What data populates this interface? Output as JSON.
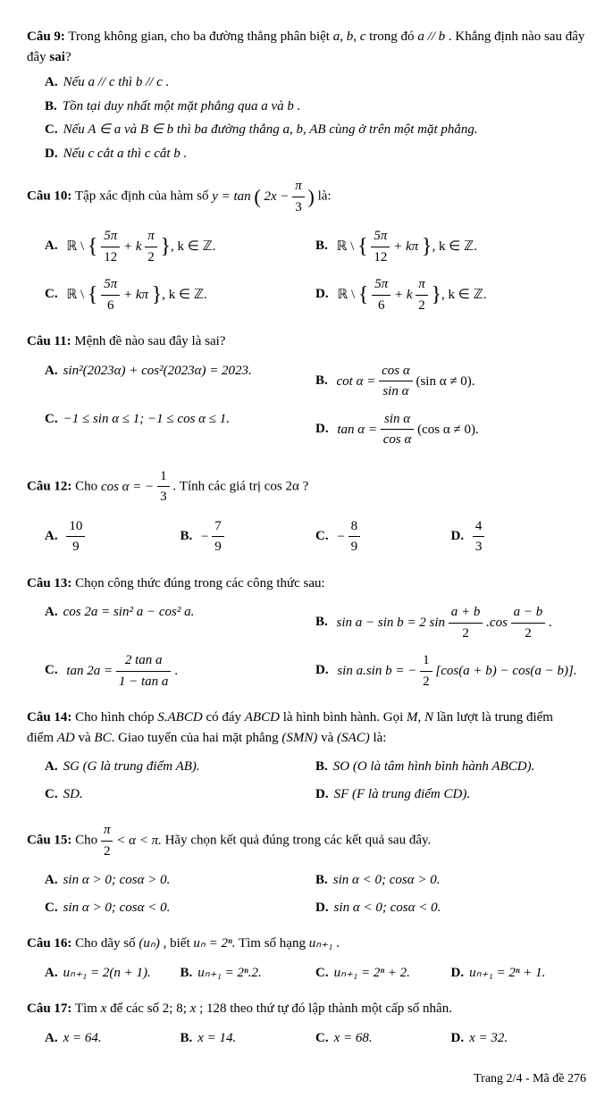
{
  "page": {
    "footer": "Trang 2/4 - Mã đề 276",
    "background_color": "#ffffff",
    "text_color": "#000000",
    "font_family": "Times New Roman",
    "base_fontsize": 15
  },
  "q9": {
    "label": "Câu 9:",
    "text_before": "Trong không gian, cho ba đường thẳng phân biệt ",
    "vars": "a, b, c",
    "text_mid": " trong đó ",
    "cond": "a // b",
    "text_after": ". Khẳng định nào sau đây ",
    "sai": "sai",
    "qmark": "?",
    "A": "Nếu a // c thì b // c .",
    "B": "Tồn tại duy nhất một mặt phẳng qua a và b .",
    "C": "Nếu A ∈ a và B ∈ b thì ba đường thẳng a, b, AB cùng ở trên một mặt phẳng.",
    "D": "Nếu c cắt a thì c cắt b ."
  },
  "q10": {
    "label": "Câu 10:",
    "text": "Tập xác định của hàm số ",
    "eq_lhs": "y = tan",
    "eq_inner_a": "2x −",
    "eq_inner_num": "π",
    "eq_inner_den": "3",
    "text_after": " là:",
    "A_pre": "ℝ \\ ",
    "A_num": "5π",
    "A_den": "12",
    "A_mid": " + k",
    "A_num2": "π",
    "A_den2": "2",
    "A_suf": ", k ∈ ℤ.",
    "B_num": "5π",
    "B_den": "12",
    "B_mid": " + kπ",
    "B_suf": ", k ∈ ℤ.",
    "C_num": "5π",
    "C_den": "6",
    "C_mid": " + kπ",
    "C_suf": ", k ∈ ℤ.",
    "D_num": "5π",
    "D_den": "6",
    "D_mid": " + k",
    "D_num2": "π",
    "D_den2": "2",
    "D_suf": ", k ∈ ℤ."
  },
  "q11": {
    "label": "Câu 11:",
    "text": "Mệnh đề nào sau đây là sai?",
    "A": "sin²(2023α) + cos²(2023α) = 2023.",
    "B_pre": "cot α = ",
    "B_num": "cos α",
    "B_den": "sin α",
    "B_suf": " (sin α ≠ 0).",
    "C": "−1 ≤ sin α ≤ 1;   −1 ≤ cos α ≤ 1.",
    "D_pre": "tan α = ",
    "D_num": "sin α",
    "D_den": "cos α",
    "D_suf": " (cos α ≠ 0)."
  },
  "q12": {
    "label": "Câu 12:",
    "text_a": "Cho ",
    "eq_lhs": "cos α = −",
    "eq_num": "1",
    "eq_den": "3",
    "text_b": " . Tính các giá trị cos 2α ?",
    "A_num": "10",
    "A_den": "9",
    "B_pre": "−",
    "B_num": "7",
    "B_den": "9",
    "C_pre": "−",
    "C_num": "8",
    "C_den": "9",
    "D_num": "4",
    "D_den": "3"
  },
  "q13": {
    "label": "Câu 13:",
    "text": "Chọn công thức đúng trong các công thức sau:",
    "A": "cos 2a = sin² a − cos² a.",
    "B_pre": "sin a − sin b = 2 sin",
    "B_num1": "a + b",
    "B_den1": "2",
    "B_mid": ".cos",
    "B_num2": "a − b",
    "B_den2": "2",
    "B_suf": ".",
    "C_pre": "tan 2a = ",
    "C_num": "2 tan a",
    "C_den": "1 − tan a",
    "C_suf": ".",
    "D_pre": "sin a.sin b = −",
    "D_num": "1",
    "D_den": "2",
    "D_suf": "[cos(a + b) − cos(a − b)]."
  },
  "q14": {
    "label": "Câu 14:",
    "text_a": "Cho hình chóp ",
    "shape": "S.ABCD",
    "text_b": " có đáy ",
    "base": "ABCD",
    "text_c": " là hình bình hành. Gọi ",
    "pts": "M, N",
    "text_d": " lần lượt là trung điểm ",
    "ad": "AD",
    "text_e": " và ",
    "bc": "BC",
    "text_f": ". Giao tuyến của hai mặt phẳng ",
    "p1": "(SMN)",
    "text_g": " và ",
    "p2": "(SAC)",
    "text_h": " là:",
    "A": "SG (G là trung điểm AB).",
    "B": "SO (O là tâm hình bình hành ABCD).",
    "C": "SD.",
    "D": "SF (F là trung điểm CD)."
  },
  "q15": {
    "label": "Câu 15:",
    "text_a": "Cho ",
    "ineq_num": "π",
    "ineq_den": "2",
    "ineq_rest": " < α < π.",
    "text_b": " Hãy chọn kết quả đúng trong các kết quả sau đây.",
    "A": "sin α > 0; cosα > 0.",
    "B": "sin α < 0; cosα > 0.",
    "C": "sin α > 0; cosα < 0.",
    "D": "sin α < 0; cosα < 0."
  },
  "q16": {
    "label": "Câu 16:",
    "text_a": "Cho dãy số ",
    "seq": "(uₙ)",
    "text_b": ", biết ",
    "def": "uₙ = 2ⁿ.",
    "text_c": " Tìm số hạng ",
    "target": "uₙ₊₁",
    "text_d": ".",
    "A": "uₙ₊₁ = 2(n + 1).",
    "B": "uₙ₊₁ = 2ⁿ.2.",
    "C": "uₙ₊₁ = 2ⁿ + 2.",
    "D": "uₙ₊₁ = 2ⁿ + 1."
  },
  "q17": {
    "label": "Câu 17:",
    "text_a": "Tìm ",
    "x": "x",
    "text_b": " để các số 2;  8;  ",
    "x2": "x",
    "text_c": ";  128 theo thứ tự đó lập thành một cấp số nhân.",
    "A": "x = 64.",
    "B": "x = 14.",
    "C": "x = 68.",
    "D": "x = 32."
  }
}
